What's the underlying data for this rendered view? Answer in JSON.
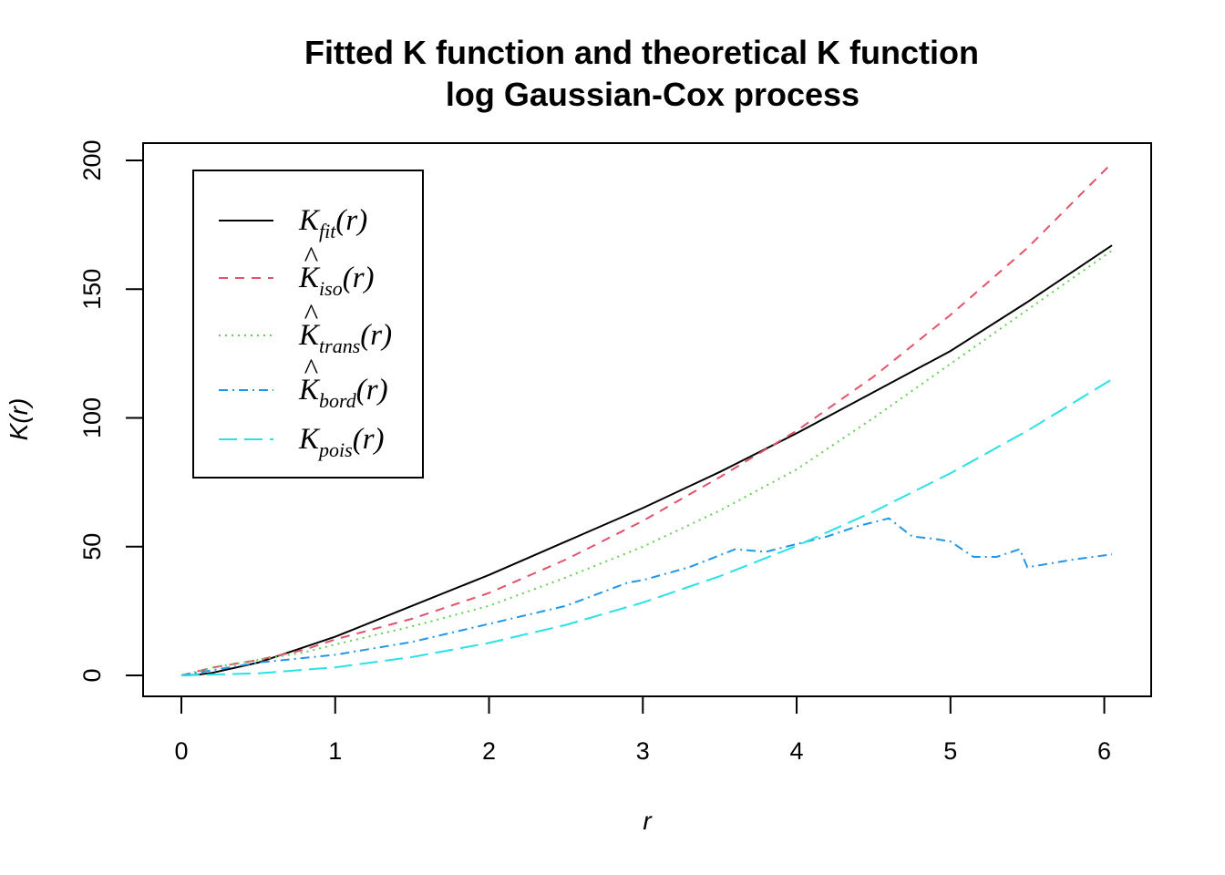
{
  "chart_data": {
    "type": "line",
    "title": [
      "Fitted K function and theoretical K function",
      "log Gaussian-Cox process"
    ],
    "xlabel": "r",
    "ylabel": "K(r)",
    "xlim": [
      0,
      6.05
    ],
    "ylim": [
      0,
      200
    ],
    "xticks": [
      0,
      1,
      2,
      3,
      4,
      5,
      6
    ],
    "yticks": [
      0,
      50,
      100,
      150,
      200
    ],
    "grid": false,
    "legend_position": "top-left",
    "series": [
      {
        "name": "K_fit(r)",
        "legend": {
          "base": "K",
          "sub": "fit",
          "hat": false
        },
        "color": "#000000",
        "dash": "none",
        "x": [
          0,
          0.1,
          0.2,
          0.5,
          1,
          1.5,
          2,
          2.5,
          3,
          3.5,
          4,
          4.5,
          5,
          5.5,
          6.05
        ],
        "y": [
          0,
          0.2,
          1,
          5,
          15,
          27,
          39,
          52,
          65,
          79,
          94,
          110,
          126,
          145,
          167
        ]
      },
      {
        "name": "K̂_iso(r)",
        "legend": {
          "base": "K",
          "sub": "iso",
          "hat": true
        },
        "color": "#DF536B",
        "dash": "10,8",
        "x": [
          0,
          0.2,
          0.5,
          0.8,
          1,
          1.5,
          2,
          2.5,
          3,
          3.5,
          4,
          4.5,
          5,
          5.5,
          6.05
        ],
        "y": [
          0,
          3,
          6,
          10,
          14,
          22,
          32,
          45,
          60,
          77,
          95,
          116,
          140,
          166,
          199
        ]
      },
      {
        "name": "K̂_trans(r)",
        "legend": {
          "base": "K",
          "sub": "trans",
          "hat": true
        },
        "color": "#61D04F",
        "dash": "2,5",
        "x": [
          0,
          0.2,
          0.5,
          0.8,
          1,
          1.5,
          2,
          2.5,
          3,
          3.5,
          4,
          4.5,
          5,
          5.5,
          6.05
        ],
        "y": [
          0,
          3,
          6,
          9,
          12,
          19,
          27,
          38,
          50,
          64,
          80,
          100,
          121,
          142,
          165
        ]
      },
      {
        "name": "K̂_bord(r)",
        "legend": {
          "base": "K",
          "sub": "bord",
          "hat": true
        },
        "color": "#2297E6",
        "dash": "10,5,2,5",
        "x": [
          0,
          0.5,
          1,
          1.5,
          2,
          2.5,
          2.9,
          3,
          3.3,
          3.6,
          3.8,
          4.0,
          4.2,
          4.4,
          4.6,
          4.75,
          4.9,
          5.0,
          5.15,
          5.3,
          5.45,
          5.5,
          5.8,
          6.05
        ],
        "y": [
          0,
          5,
          8,
          13,
          20,
          27,
          36,
          37,
          42,
          49,
          48,
          51,
          54,
          58,
          61,
          54,
          53,
          52,
          46,
          46,
          49,
          42,
          45,
          47
        ]
      },
      {
        "name": "K_pois(r)",
        "legend": {
          "base": "K",
          "sub": "pois",
          "hat": false
        },
        "color": "#28E2E5",
        "dash": "20,8",
        "x": [
          0,
          0.5,
          1,
          1.5,
          2,
          2.5,
          3,
          3.5,
          4,
          4.5,
          5,
          5.5,
          6.05
        ],
        "y": [
          0,
          0.8,
          3.1,
          7.1,
          12.6,
          19.6,
          28.3,
          38.5,
          50.3,
          63.6,
          78.5,
          95.0,
          115
        ]
      }
    ]
  }
}
